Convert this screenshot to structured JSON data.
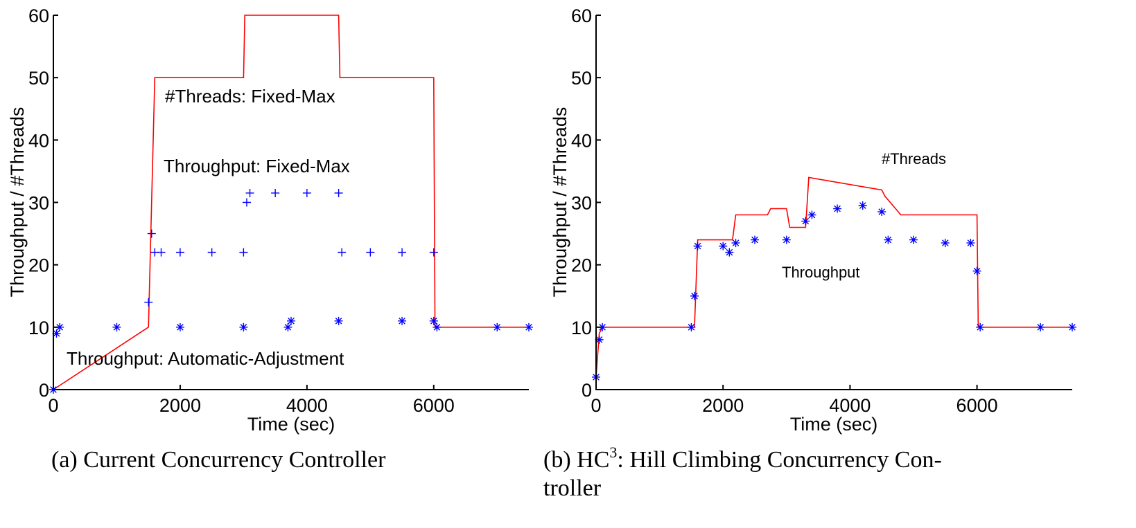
{
  "colors": {
    "threads": "#ff0000",
    "throughput": "#0000ff",
    "axis": "#000000"
  },
  "chart_data": [
    {
      "type": "line",
      "caption": "(a) Current Concurrency Controller",
      "xlabel": "Time (sec)",
      "ylabel": "Throughput / #Threads",
      "xlim": [
        0,
        7500
      ],
      "ylim": [
        0,
        60
      ],
      "xticks": [
        0,
        2000,
        4000,
        6000
      ],
      "yticks": [
        0,
        10,
        20,
        30,
        40,
        50,
        60
      ],
      "grid": false,
      "series": [
        {
          "name": "#Threads: Fixed-Max",
          "kind": "line",
          "x": [
            0,
            1500,
            1600,
            3000,
            3020,
            4500,
            4520,
            6000,
            6020,
            7500
          ],
          "y": [
            0,
            10,
            50,
            50,
            60,
            60,
            50,
            50,
            10,
            10
          ]
        },
        {
          "name": "Throughput: Fixed-Max",
          "kind": "markers-plus",
          "x": [
            1500,
            1550,
            1600,
            1700,
            2000,
            2500,
            3000,
            3050,
            3100,
            3500,
            4000,
            4500,
            4550,
            5000,
            5500,
            6000
          ],
          "y": [
            14,
            25,
            22,
            22,
            22,
            22,
            22,
            30,
            31.5,
            31.5,
            31.5,
            31.5,
            22,
            22,
            22,
            22
          ]
        },
        {
          "name": "Throughput: Automatic-Adjustment",
          "kind": "markers-star",
          "x": [
            0,
            50,
            100,
            1000,
            2000,
            3000,
            3700,
            3750,
            4500,
            5500,
            6000,
            6050,
            7000,
            7500
          ],
          "y": [
            0,
            9,
            10,
            10,
            10,
            10,
            10,
            11,
            11,
            11,
            11,
            10,
            10,
            10
          ]
        }
      ],
      "annotations": [
        "#Threads: Fixed-Max",
        "Throughput: Fixed-Max",
        "Throughput: Automatic-Adjustment"
      ]
    },
    {
      "type": "line",
      "caption_prefix": "(b) HC",
      "caption_sup": "3",
      "caption_line1": ": Hill Climbing Concurrency Con-",
      "caption_line2": "troller",
      "xlabel": "Time (sec)",
      "ylabel": "Throughput / #Threads",
      "xlim": [
        0,
        7500
      ],
      "ylim": [
        0,
        60
      ],
      "xticks": [
        0,
        2000,
        4000,
        6000
      ],
      "yticks": [
        0,
        10,
        20,
        30,
        40,
        50,
        60
      ],
      "grid": false,
      "series": [
        {
          "name": "#Threads",
          "kind": "line",
          "x": [
            0,
            50,
            100,
            1550,
            1600,
            2150,
            2200,
            2700,
            2750,
            3000,
            3050,
            3300,
            3350,
            4500,
            4550,
            4800,
            4850,
            6000,
            6020,
            7500
          ],
          "y": [
            2,
            9,
            10,
            10,
            24,
            24,
            28,
            28,
            29,
            29,
            26,
            26,
            34,
            32,
            31,
            28,
            28,
            28,
            10,
            10
          ]
        },
        {
          "name": "Throughput",
          "kind": "markers-star",
          "x": [
            0,
            50,
            100,
            1500,
            1550,
            1600,
            2000,
            2100,
            2200,
            2500,
            3000,
            3300,
            3400,
            3800,
            4200,
            4500,
            4600,
            5000,
            5500,
            5900,
            6000,
            6050,
            7000,
            7500
          ],
          "y": [
            2,
            8,
            10,
            10,
            15,
            23,
            23,
            22,
            23.5,
            24,
            24,
            27,
            28,
            29,
            29.5,
            28.5,
            24,
            24,
            23.5,
            23.5,
            19,
            10,
            10,
            10
          ]
        }
      ],
      "annotations": [
        "#Threads",
        "Throughput"
      ]
    }
  ]
}
